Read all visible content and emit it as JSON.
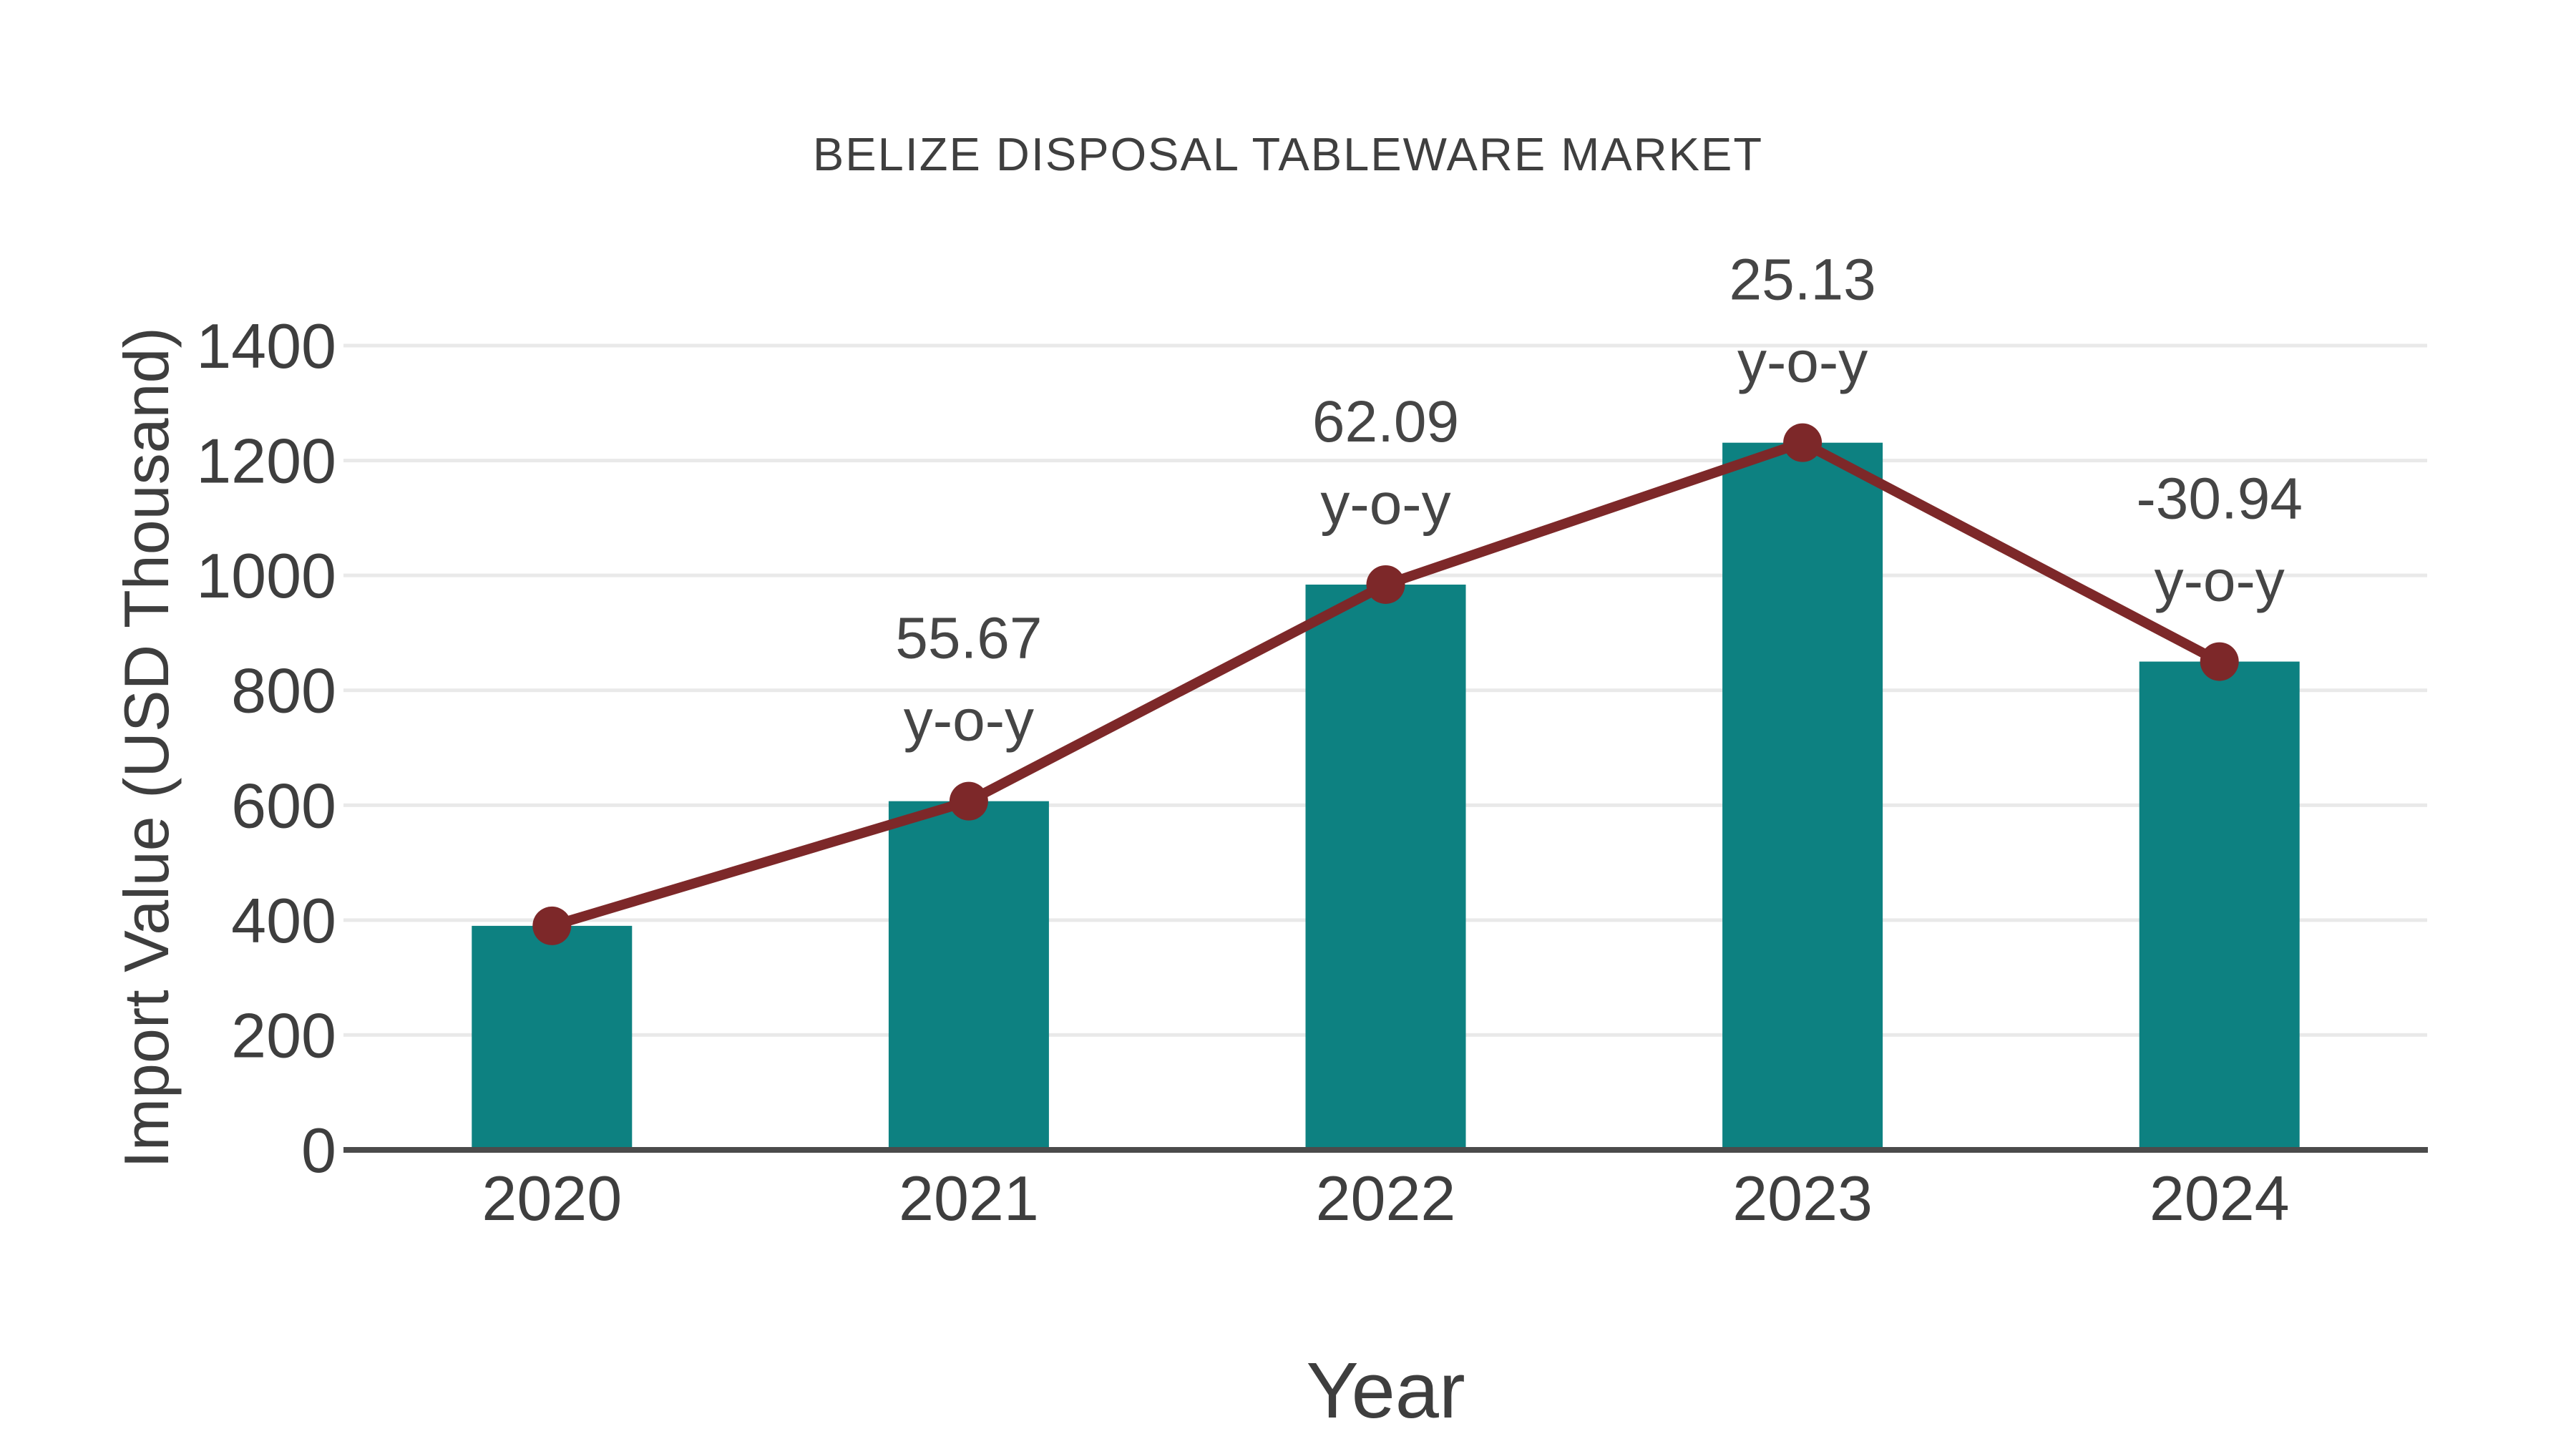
{
  "chart_data": {
    "type": "bar",
    "title": "BELIZE DISPOSAL TABLEWARE MARKET",
    "xlabel": "Year",
    "ylabel": "Import Value (USD Thousand)",
    "categories": [
      "2020",
      "2021",
      "2022",
      "2023",
      "2024"
    ],
    "series": [
      {
        "name": "Import Value",
        "type": "bar",
        "color": "#0d8181",
        "values": [
          390,
          607,
          984,
          1231,
          850
        ]
      },
      {
        "name": "y-o-y trend",
        "type": "line",
        "color": "#7d2829",
        "values": [
          390,
          607,
          984,
          1231,
          850
        ]
      }
    ],
    "annotations": [
      {
        "category": "2021",
        "line1": "55.67",
        "line2": "y-o-y"
      },
      {
        "category": "2022",
        "line1": "62.09",
        "line2": "y-o-y"
      },
      {
        "category": "2023",
        "line1": "25.13",
        "line2": "y-o-y"
      },
      {
        "category": "2024",
        "line1": "-30.94",
        "line2": "y-o-y"
      }
    ],
    "yticks": [
      0,
      200,
      400,
      600,
      800,
      1000,
      1200,
      1400
    ],
    "ytick_labels": [
      "0",
      "200",
      "400",
      "600",
      "800",
      "1000",
      "1200",
      "1400"
    ],
    "ylim": [
      0,
      1400
    ],
    "grid": true,
    "legend_position": "none",
    "colors": {
      "bar": "#0d8181",
      "line": "#7d2829",
      "text": "#3e3e3e",
      "annotation": "#454545",
      "grid": "#e9e9e9",
      "axis": "#4b4b4b",
      "background": "#ffffff"
    }
  }
}
